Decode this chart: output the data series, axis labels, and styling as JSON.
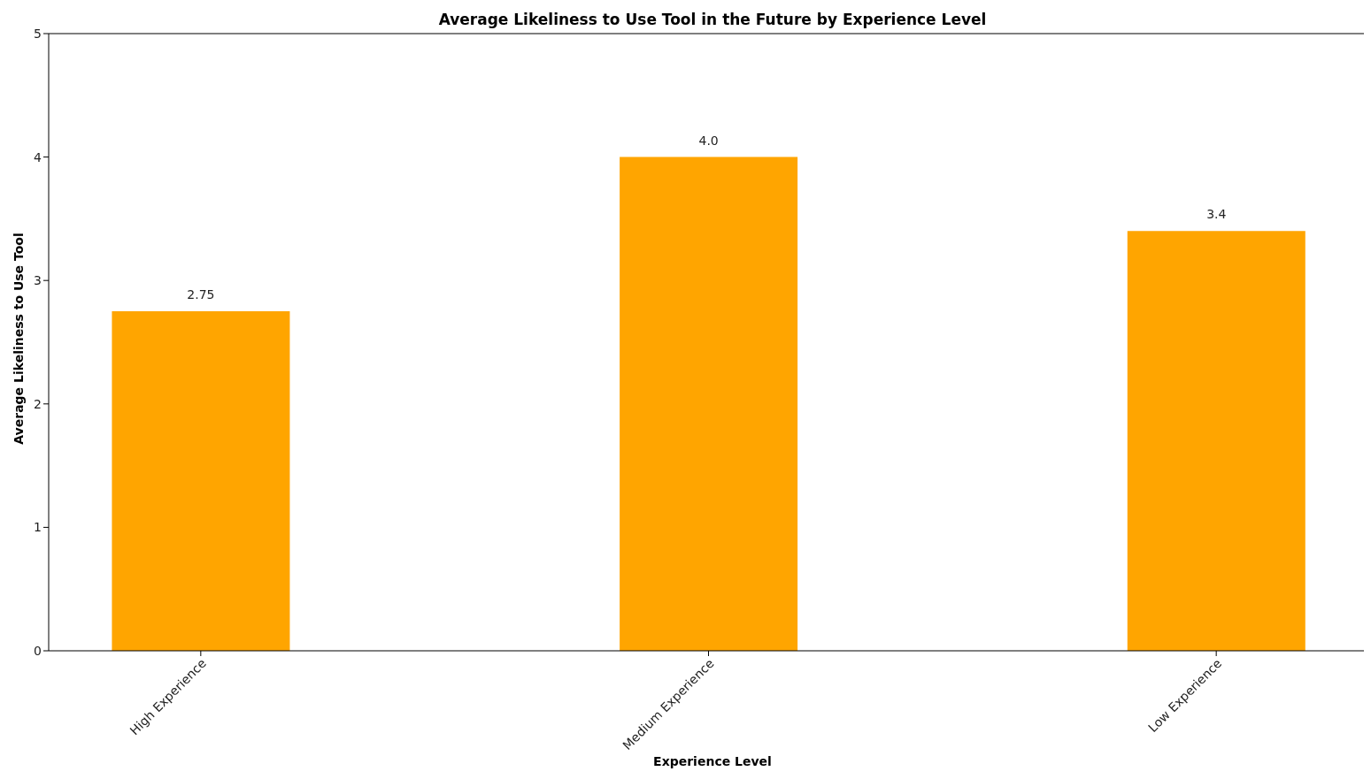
{
  "chart_data": {
    "type": "bar",
    "title": "Average Likeliness to Use Tool in the Future by Experience Level",
    "xlabel": "Experience Level",
    "ylabel": "Average Likeliness to Use Tool",
    "categories": [
      "High Experience",
      "Medium Experience",
      "Low Experience"
    ],
    "values": [
      2.75,
      4,
      3.4
    ],
    "value_labels": [
      "2.75",
      "4.0",
      "3.4"
    ],
    "color": "#ffa500",
    "ylim": [
      0,
      5
    ],
    "yticks": [
      0,
      1,
      2,
      3,
      4,
      5
    ],
    "grid": false,
    "legend": false
  }
}
